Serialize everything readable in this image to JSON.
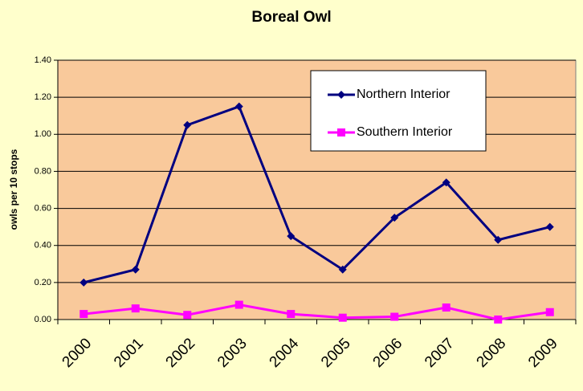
{
  "chart_data": {
    "type": "line",
    "title": "Boreal Owl",
    "y_label": "owls per 10 stops",
    "categories": [
      "2000",
      "2001",
      "2002",
      "2003",
      "2004",
      "2005",
      "2006",
      "2007",
      "2008",
      "2009"
    ],
    "series": [
      {
        "name": "Northern Interior",
        "color": "#000080",
        "marker": "diamond",
        "values": [
          0.2,
          0.27,
          1.05,
          1.15,
          0.45,
          0.27,
          0.55,
          0.74,
          0.43,
          0.5
        ]
      },
      {
        "name": "Southern Interior",
        "color": "#ff00ff",
        "marker": "square",
        "values": [
          0.03,
          0.06,
          0.025,
          0.08,
          0.03,
          0.01,
          0.015,
          0.065,
          0.0,
          0.04
        ]
      }
    ],
    "ylim": [
      0,
      1.4
    ],
    "yticks": [
      {
        "value": 0,
        "label": "0.00"
      },
      {
        "value": 0.2,
        "label": "0.20"
      },
      {
        "value": 0.4,
        "label": "0.40"
      },
      {
        "value": 0.6,
        "label": "0.60"
      },
      {
        "value": 0.8,
        "label": "0.80"
      },
      {
        "value": 1.0,
        "label": "1.00"
      },
      {
        "value": 1.2,
        "label": "1.20"
      },
      {
        "value": 1.4,
        "label": "1.40"
      }
    ],
    "grid": true
  }
}
